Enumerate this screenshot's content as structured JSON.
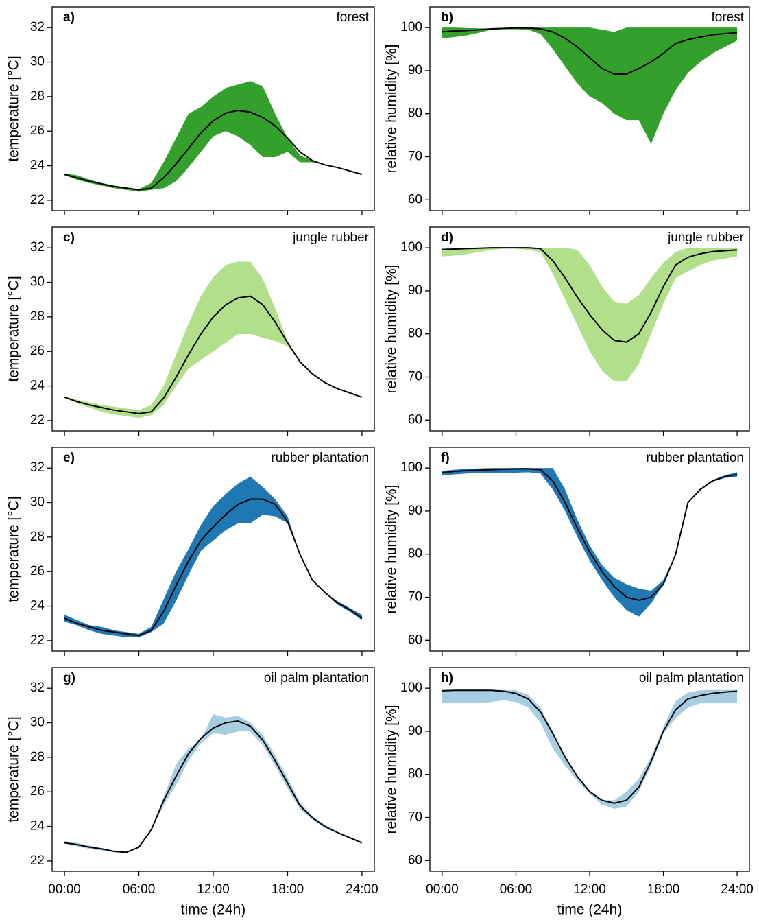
{
  "chart_data": [
    {
      "type": "line",
      "panel": "a)",
      "title": "forest",
      "ylabel": "temperature [°C]",
      "x": [
        0,
        1,
        2,
        3,
        4,
        5,
        6,
        7,
        8,
        9,
        10,
        11,
        12,
        13,
        14,
        15,
        16,
        17,
        18,
        19,
        20,
        21,
        22,
        23,
        24
      ],
      "values": [
        23.5,
        23.3,
        23.1,
        22.95,
        22.8,
        22.7,
        22.6,
        22.7,
        23.3,
        24.1,
        25.0,
        25.9,
        26.6,
        27.05,
        27.2,
        27.1,
        26.8,
        26.3,
        25.6,
        24.8,
        24.3,
        24.05,
        23.9,
        23.7,
        23.5
      ],
      "color": "#000000",
      "band": {
        "color": "#33a02c",
        "upper": [
          23.55,
          23.45,
          23.2,
          23.0,
          22.85,
          22.75,
          22.65,
          23.0,
          24.2,
          25.6,
          27.0,
          27.4,
          28.0,
          28.5,
          28.7,
          28.9,
          28.6,
          27.0,
          25.6,
          24.6,
          24.3,
          24.05,
          23.9,
          23.7,
          23.5
        ],
        "lower": [
          23.45,
          23.2,
          23.0,
          22.85,
          22.7,
          22.6,
          22.5,
          22.6,
          22.7,
          23.1,
          23.9,
          24.8,
          25.7,
          26.0,
          25.7,
          25.2,
          24.5,
          24.5,
          24.8,
          24.2,
          24.2,
          24.05,
          23.9,
          23.7,
          23.5
        ]
      },
      "xlim": [
        -1,
        25
      ],
      "ylim": [
        21.4,
        33.2
      ],
      "xticks": [
        0,
        6,
        12,
        18,
        24
      ],
      "yticks": [
        22,
        24,
        26,
        28,
        30,
        32
      ]
    },
    {
      "type": "line",
      "panel": "b)",
      "title": "forest",
      "ylabel": "relative humidity [%]",
      "x": [
        0,
        1,
        2,
        3,
        4,
        5,
        6,
        7,
        8,
        9,
        10,
        11,
        12,
        13,
        14,
        15,
        16,
        17,
        18,
        19,
        20,
        21,
        22,
        23,
        24
      ],
      "values": [
        99,
        99.2,
        99.3,
        99.5,
        99.7,
        99.8,
        99.9,
        99.9,
        99.7,
        99,
        97.5,
        95.5,
        93,
        90.5,
        89.2,
        89.2,
        90.5,
        92,
        94,
        96.3,
        97.2,
        97.8,
        98.3,
        98.6,
        98.8
      ],
      "color": "#000000",
      "band": {
        "color": "#33a02c",
        "upper": [
          100,
          100,
          99.9,
          99.8,
          99.8,
          99.9,
          100,
          100,
          100,
          100,
          100,
          100,
          100,
          99.5,
          99,
          100,
          100,
          100,
          100,
          100,
          100,
          100,
          100,
          100,
          100
        ],
        "lower": [
          97.5,
          97.8,
          98.2,
          98.8,
          99.5,
          99.6,
          99.6,
          99.5,
          98.5,
          95,
          91,
          87,
          84,
          82.5,
          80,
          78.5,
          78.5,
          73,
          80,
          85.5,
          89.5,
          92,
          94,
          95.5,
          97
        ]
      },
      "xlim": [
        -1,
        25
      ],
      "ylim": [
        57.5,
        104.8
      ],
      "xticks": [
        0,
        6,
        12,
        18,
        24
      ],
      "yticks": [
        60,
        70,
        80,
        90,
        100
      ]
    },
    {
      "type": "line",
      "panel": "c)",
      "title": "jungle rubber",
      "ylabel": "temperature [°C]",
      "x": [
        0,
        1,
        2,
        3,
        4,
        5,
        6,
        7,
        8,
        9,
        10,
        11,
        12,
        13,
        14,
        15,
        16,
        17,
        18,
        19,
        20,
        21,
        22,
        23,
        24
      ],
      "values": [
        23.35,
        23.1,
        22.9,
        22.75,
        22.6,
        22.5,
        22.4,
        22.5,
        23.3,
        24.5,
        25.8,
        27,
        28,
        28.7,
        29.1,
        29.2,
        28.7,
        27.7,
        26.5,
        25.4,
        24.7,
        24.2,
        23.85,
        23.6,
        23.35
      ],
      "color": "#000000",
      "band": {
        "color": "#b2df8a",
        "upper": [
          23.4,
          23.2,
          23.05,
          22.9,
          22.8,
          22.7,
          22.6,
          22.9,
          24.0,
          25.8,
          27.6,
          29.2,
          30.3,
          31.0,
          31.2,
          31.2,
          30.2,
          28.5,
          26.6,
          25.4,
          24.7,
          24.2,
          23.85,
          23.6,
          23.35
        ],
        "lower": [
          23.3,
          23.0,
          22.75,
          22.5,
          22.35,
          22.25,
          22.15,
          22.3,
          22.9,
          24.0,
          25.0,
          25.5,
          26.0,
          26.5,
          27.0,
          27.0,
          26.8,
          26.6,
          26.3,
          25.4,
          24.7,
          24.2,
          23.85,
          23.6,
          23.35
        ]
      },
      "xlim": [
        -1,
        25
      ],
      "ylim": [
        21.4,
        33.2
      ],
      "xticks": [
        0,
        6,
        12,
        18,
        24
      ],
      "yticks": [
        22,
        24,
        26,
        28,
        30,
        32
      ]
    },
    {
      "type": "line",
      "panel": "d)",
      "title": "jungle rubber",
      "ylabel": "relative humidity [%]",
      "x": [
        0,
        1,
        2,
        3,
        4,
        5,
        6,
        7,
        8,
        9,
        10,
        11,
        12,
        13,
        14,
        15,
        16,
        17,
        18,
        19,
        20,
        21,
        22,
        23,
        24
      ],
      "values": [
        99.6,
        99.7,
        99.8,
        99.9,
        100,
        100,
        100,
        100,
        99.8,
        97,
        93,
        88.5,
        84.5,
        81,
        78.5,
        78.1,
        80,
        85,
        91,
        96,
        97.8,
        98.6,
        99.1,
        99.3,
        99.5
      ],
      "color": "#000000",
      "band": {
        "color": "#b2df8a",
        "upper": [
          100,
          100,
          100,
          100,
          100,
          100,
          100,
          100,
          100,
          100,
          100,
          99.5,
          96,
          91,
          87.5,
          87,
          89,
          93,
          96.5,
          99,
          100,
          100,
          100,
          100,
          100
        ],
        "lower": [
          98,
          98.2,
          98.5,
          99,
          99.5,
          99.8,
          99.8,
          99.5,
          99,
          94,
          88,
          82,
          76,
          71.5,
          69,
          69,
          73,
          80,
          87,
          93,
          94.5,
          96,
          97,
          97.5,
          98
        ]
      },
      "xlim": [
        -1,
        25
      ],
      "ylim": [
        57.5,
        104.8
      ],
      "xticks": [
        0,
        6,
        12,
        18,
        24
      ],
      "yticks": [
        60,
        70,
        80,
        90,
        100
      ]
    },
    {
      "type": "line",
      "panel": "e)",
      "title": "rubber plantation",
      "ylabel": "temperature [°C]",
      "x": [
        0,
        1,
        2,
        3,
        4,
        5,
        6,
        7,
        8,
        9,
        10,
        11,
        12,
        13,
        14,
        15,
        16,
        17,
        18,
        19,
        20,
        21,
        22,
        23,
        24
      ],
      "values": [
        23.3,
        23.0,
        22.8,
        22.6,
        22.5,
        22.4,
        22.3,
        22.6,
        23.7,
        25.2,
        26.6,
        27.8,
        28.6,
        29.3,
        29.9,
        30.2,
        30.2,
        29.9,
        28.9,
        27.0,
        25.5,
        24.8,
        24.2,
        23.8,
        23.3
      ],
      "color": "#000000",
      "band": {
        "color": "#1f78b4",
        "upper": [
          23.5,
          23.2,
          22.9,
          22.8,
          22.6,
          22.5,
          22.4,
          22.8,
          24.4,
          26.0,
          27.3,
          28.7,
          29.8,
          30.5,
          31.1,
          31.5,
          30.9,
          30.2,
          29.2,
          27.0,
          25.5,
          24.8,
          24.3,
          23.9,
          23.5
        ],
        "lower": [
          23.1,
          22.9,
          22.6,
          22.4,
          22.3,
          22.2,
          22.2,
          22.5,
          23.0,
          24.3,
          25.8,
          27.2,
          27.8,
          28.4,
          28.8,
          28.8,
          29.3,
          29.2,
          28.8,
          27.0,
          25.5,
          24.8,
          24.1,
          23.7,
          23.2
        ]
      },
      "xlim": [
        -1,
        25
      ],
      "ylim": [
        21.4,
        33.2
      ],
      "xticks": [
        0,
        6,
        12,
        18,
        24
      ],
      "yticks": [
        22,
        24,
        26,
        28,
        30,
        32
      ]
    },
    {
      "type": "line",
      "panel": "f)",
      "title": "rubber plantation",
      "ylabel": "relative humidity [%]",
      "x": [
        0,
        1,
        2,
        3,
        4,
        5,
        6,
        7,
        8,
        9,
        10,
        11,
        12,
        13,
        14,
        15,
        16,
        17,
        18,
        19,
        20,
        21,
        22,
        23,
        24
      ],
      "values": [
        98.9,
        99.2,
        99.4,
        99.5,
        99.6,
        99.7,
        99.8,
        99.8,
        99.6,
        97,
        92,
        86,
        80.5,
        76,
        72.5,
        70,
        69.3,
        70,
        73,
        80,
        92,
        95,
        97,
        98,
        98.5
      ],
      "color": "#000000",
      "band": {
        "color": "#1f78b4",
        "upper": [
          99.3,
          99.6,
          99.8,
          99.9,
          100,
          100,
          100,
          100,
          100,
          100,
          95,
          88,
          82,
          77.5,
          74.5,
          73,
          72,
          71.5,
          74,
          80,
          92,
          95.2,
          97.2,
          98.3,
          99
        ],
        "lower": [
          98.3,
          98.5,
          98.7,
          98.8,
          98.8,
          98.8,
          98.9,
          99,
          98.7,
          95,
          90,
          84,
          78.5,
          74,
          70,
          67,
          65.5,
          68.5,
          73,
          80,
          92,
          94.8,
          96.8,
          97.7,
          98
        ]
      },
      "xlim": [
        -1,
        25
      ],
      "ylim": [
        57.5,
        104.8
      ],
      "xticks": [
        0,
        6,
        12,
        18,
        24
      ],
      "yticks": [
        60,
        70,
        80,
        90,
        100
      ]
    },
    {
      "type": "line",
      "panel": "g)",
      "title": "oil palm plantation",
      "ylabel": "temperature [°C]",
      "xlabel": "time (24h)",
      "x": [
        0,
        1,
        2,
        3,
        4,
        5,
        6,
        7,
        8,
        9,
        10,
        11,
        12,
        13,
        14,
        15,
        16,
        17,
        18,
        19,
        20,
        21,
        22,
        23,
        24
      ],
      "values": [
        23.05,
        22.95,
        22.8,
        22.7,
        22.55,
        22.5,
        22.8,
        23.8,
        25.5,
        26.9,
        28.2,
        29.1,
        29.7,
        30.0,
        30.1,
        29.8,
        29.0,
        27.8,
        26.5,
        25.2,
        24.5,
        24.0,
        23.65,
        23.35,
        23.05
      ],
      "color": "#000000",
      "band": {
        "color": "#a6cee3",
        "upper": [
          23.15,
          23.05,
          22.9,
          22.75,
          22.6,
          22.55,
          22.8,
          23.8,
          25.7,
          27.6,
          28.5,
          29.0,
          30.5,
          30.3,
          30.4,
          30.0,
          29.3,
          28.1,
          26.8,
          25.4,
          24.6,
          24.1,
          23.7,
          23.4,
          23.1
        ],
        "lower": [
          23.0,
          22.85,
          22.7,
          22.6,
          22.5,
          22.45,
          22.8,
          23.8,
          25.2,
          26.4,
          27.8,
          28.8,
          29.4,
          29.3,
          29.5,
          29.5,
          28.7,
          27.5,
          26.2,
          25.0,
          24.4,
          23.9,
          23.6,
          23.3,
          23.0
        ]
      },
      "xlim": [
        -1,
        25
      ],
      "ylim": [
        21.4,
        33.2
      ],
      "xticks": [
        {
          "value": 0,
          "label": "00:00"
        },
        {
          "value": 6,
          "label": "06:00"
        },
        {
          "value": 12,
          "label": "12:00"
        },
        {
          "value": 18,
          "label": "18:00"
        },
        {
          "value": 24,
          "label": "24:00"
        }
      ],
      "yticks": [
        22,
        24,
        26,
        28,
        30,
        32
      ]
    },
    {
      "type": "line",
      "panel": "h)",
      "title": "oil palm plantation",
      "ylabel": "relative humidity [%]",
      "xlabel": "time (24h)",
      "x": [
        0,
        1,
        2,
        3,
        4,
        5,
        6,
        7,
        8,
        9,
        10,
        11,
        12,
        13,
        14,
        15,
        16,
        17,
        18,
        19,
        20,
        21,
        22,
        23,
        24
      ],
      "values": [
        99.4,
        99.5,
        99.5,
        99.5,
        99.5,
        99.3,
        98.8,
        97.5,
        94.5,
        89.5,
        84,
        79.5,
        76,
        74,
        73.3,
        74,
        77,
        83,
        90,
        95,
        97.5,
        98.3,
        98.8,
        99.1,
        99.3
      ],
      "color": "#000000",
      "band": {
        "color": "#a6cee3",
        "upper": [
          99.6,
          99.6,
          99.6,
          99.6,
          99.6,
          99.6,
          99.5,
          98.5,
          95.5,
          90,
          84,
          79.5,
          76,
          74,
          74,
          76,
          79,
          84,
          91,
          97,
          99,
          99.5,
          99.6,
          99.6,
          99.6
        ],
        "lower": [
          96.5,
          96.5,
          96.5,
          96.5,
          96.8,
          97.2,
          96.8,
          95.5,
          92,
          86,
          82,
          78.5,
          75.5,
          73,
          72,
          72.5,
          76,
          82,
          89.5,
          93,
          95.5,
          96.5,
          96.5,
          96.5,
          96.5
        ]
      },
      "xlim": [
        -1,
        25
      ],
      "ylim": [
        57.5,
        104.8
      ],
      "xticks": [
        {
          "value": 0,
          "label": "00:00"
        },
        {
          "value": 6,
          "label": "06:00"
        },
        {
          "value": 12,
          "label": "12:00"
        },
        {
          "value": 18,
          "label": "18:00"
        },
        {
          "value": 24,
          "label": "24:00"
        }
      ],
      "yticks": [
        60,
        70,
        80,
        90,
        100
      ]
    }
  ]
}
